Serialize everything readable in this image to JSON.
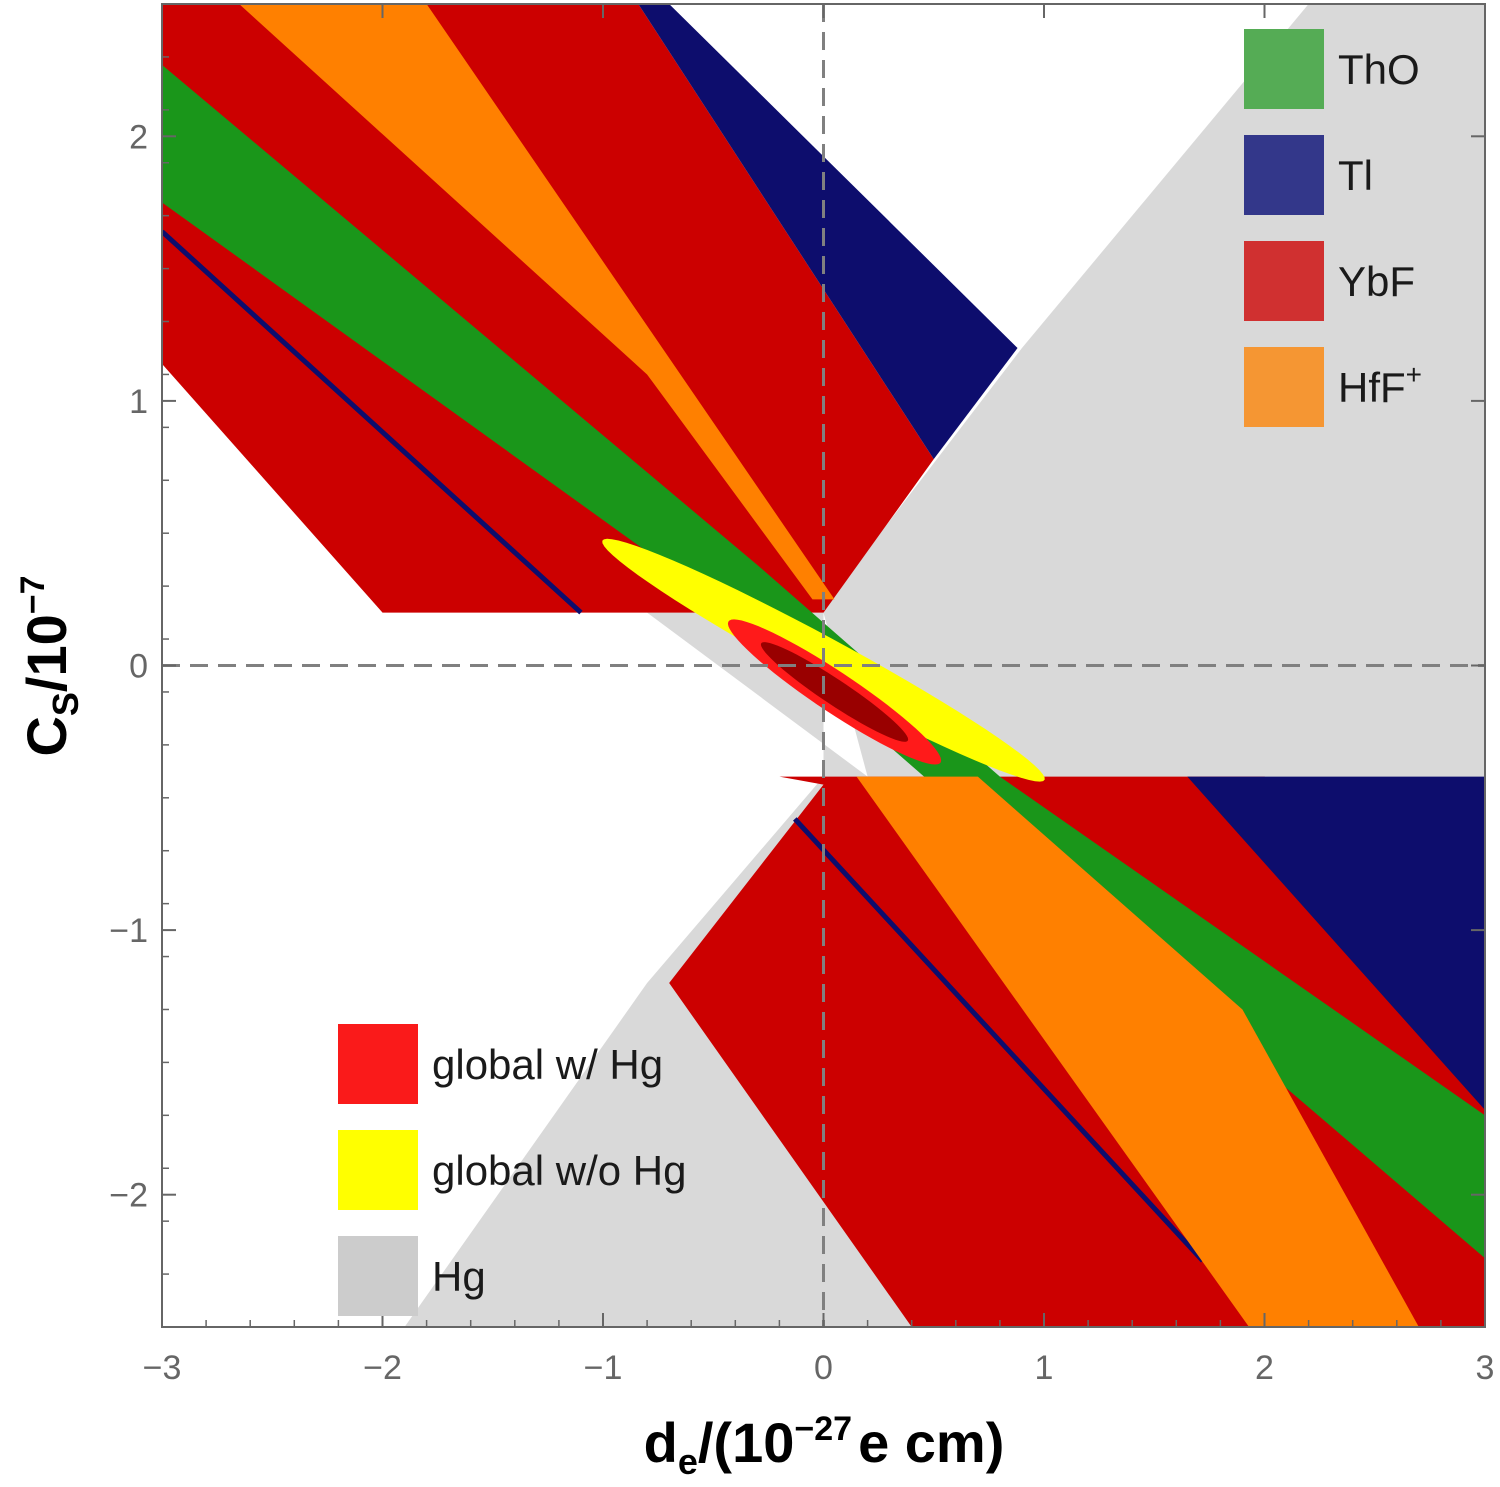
{
  "chart_data": {
    "type": "area",
    "title": "",
    "xlabel": {
      "base": "d",
      "sub": "e",
      "rest_open": "/(10",
      "sup": "−27",
      "rest_close": "e cm)"
    },
    "ylabel": {
      "base": "C",
      "sub": "S",
      "rest_open": "/10",
      "sup": "−7"
    },
    "xlim": [
      -3,
      3
    ],
    "ylim": [
      -2.5,
      2.5
    ],
    "xticks": [
      -3,
      -2,
      -1,
      0,
      1,
      2,
      3
    ],
    "yticks": [
      -2,
      -1,
      0,
      1,
      2
    ],
    "xtick_labels": [
      "−3",
      "−2",
      "−1",
      "0",
      "1",
      "2",
      "3"
    ],
    "ytick_labels": [
      "−2",
      "−1",
      "0",
      "1",
      "2"
    ],
    "reference_lines": [
      {
        "axis": "x",
        "value": 0,
        "style": "dashed"
      },
      {
        "axis": "y",
        "value": 0,
        "style": "dashed"
      }
    ],
    "grid": false,
    "legends": [
      {
        "placement": "top-right",
        "entries": [
          {
            "name": "ThO",
            "color": "#55ac55"
          },
          {
            "name": "Tl",
            "color": "#33378a"
          },
          {
            "name": "YbF",
            "color": "#d03030"
          },
          {
            "name": "HfF",
            "sup": "+",
            "color": "#f59633"
          }
        ]
      },
      {
        "placement": "bottom-left",
        "entries": [
          {
            "name": "global w/ Hg",
            "color": "#fa1a1a"
          },
          {
            "name": "global w/o Hg",
            "color": "#ffff00"
          },
          {
            "name": "Hg",
            "color": "#cccccc"
          }
        ]
      }
    ],
    "series": [
      {
        "name": "Hg",
        "color": "#d9d9d9",
        "polygons": [
          [
            [
              -3,
              0.2
            ],
            [
              -0.8,
              0.2
            ],
            [
              0.2,
              -0.42
            ],
            [
              3,
              -0.42
            ],
            [
              3,
              -2.5
            ],
            [
              -1.9,
              -2.5
            ],
            [
              -0.8,
              -1.2
            ],
            [
              0,
              -0.42
            ],
            [
              0,
              0.2
            ],
            [
              -3,
              0.2
            ]
          ],
          [
            [
              0,
              0.22
            ],
            [
              0.9,
              1.2
            ],
            [
              2.2,
              2.5
            ],
            [
              3,
              2.5
            ],
            [
              3,
              -0.42
            ],
            [
              0.2,
              -0.42
            ],
            [
              0,
              0.2
            ]
          ]
        ]
      },
      {
        "name": "YbF",
        "color": "#cc0000",
        "polygons": [
          [
            [
              -3,
              2.5
            ],
            [
              -0.84,
              2.5
            ],
            [
              0.5,
              0.78
            ],
            [
              0,
              0.2
            ],
            [
              -2,
              0.2
            ],
            [
              -3,
              1.14
            ]
          ],
          [
            [
              -0.2,
              -0.42
            ],
            [
              2,
              -0.42
            ],
            [
              3,
              -0.9
            ],
            [
              3,
              -2.5
            ],
            [
              0.4,
              -2.5
            ],
            [
              -0.7,
              -1.2
            ],
            [
              0,
              -0.45
            ]
          ]
        ]
      },
      {
        "name": "Tl",
        "color": "#0d0d6d",
        "polygons": [
          [
            [
              -0.84,
              2.5
            ],
            [
              -0.7,
              2.5
            ],
            [
              0.88,
              1.2
            ],
            [
              0.5,
              0.78
            ]
          ],
          [
            [
              1.65,
              -0.42
            ],
            [
              3,
              -0.42
            ],
            [
              3,
              -1.68
            ],
            [
              1.65,
              -0.42
            ]
          ]
        ]
      },
      {
        "name": "Tl (lower band)",
        "color": "#0d0d6d",
        "lines": [
          [
            [
              -3,
              1.64
            ],
            [
              -1.1,
              0.2
            ]
          ],
          [
            [
              -0.13,
              -0.58
            ],
            [
              1.72,
              -2.25
            ]
          ]
        ]
      },
      {
        "name": "ThO",
        "color": "#1a961a",
        "polygons": [
          [
            [
              -3,
              2.27
            ],
            [
              -0.3,
              0.38
            ],
            [
              0.8,
              -0.42
            ],
            [
              3,
              -1.7
            ],
            [
              3,
              -2.24
            ],
            [
              0.8,
              -0.67
            ],
            [
              -0.3,
              0.13
            ],
            [
              -3,
              1.75
            ]
          ]
        ]
      },
      {
        "name": "HfF+",
        "color": "#ff8000",
        "polygons": [
          [
            [
              -2.65,
              2.5
            ],
            [
              -1.8,
              2.5
            ],
            [
              0.05,
              0.25
            ],
            [
              -0.05,
              0.25
            ],
            [
              -0.8,
              1.1
            ]
          ],
          [
            [
              0.15,
              -0.42
            ],
            [
              0.7,
              -0.42
            ],
            [
              1.9,
              -1.3
            ],
            [
              2.7,
              -2.5
            ],
            [
              1.93,
              -2.5
            ],
            [
              0.15,
              -0.42
            ]
          ]
        ]
      },
      {
        "name": "global w/o Hg",
        "color": "#ffff00",
        "ellipse": {
          "center": [
            0,
            0.02
          ],
          "semi_major": 1.1,
          "semi_minor": 0.09,
          "slope": -0.45
        }
      },
      {
        "name": "global w/ Hg",
        "color": "#ff1a1a",
        "ellipse": {
          "center": [
            0.05,
            -0.1
          ],
          "semi_major": 0.55,
          "semi_minor": 0.08,
          "slope": -0.55
        }
      },
      {
        "name": "global w/ Hg (inner)",
        "color": "#990000",
        "ellipse": {
          "center": [
            0.05,
            -0.1
          ],
          "semi_major": 0.38,
          "semi_minor": 0.05,
          "slope": -0.55
        }
      }
    ]
  }
}
